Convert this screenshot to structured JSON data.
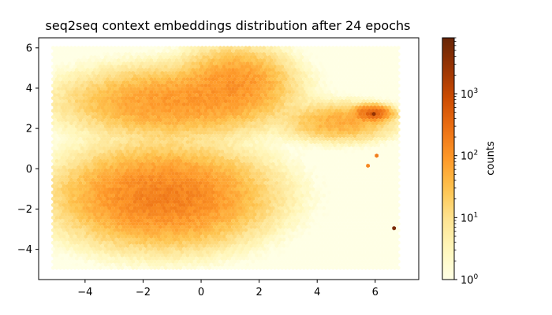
{
  "chart_data": {
    "type": "heatmap",
    "subtype": "hexbin",
    "title": "seq2seq context embeddings distribution after 24 epochs",
    "xlabel": "",
    "ylabel": "",
    "xlim": [
      -5.6,
      7.5
    ],
    "ylim": [
      -5.5,
      6.5
    ],
    "x_ticks": [
      -4,
      -2,
      0,
      2,
      4,
      6
    ],
    "y_ticks": [
      -4,
      -2,
      0,
      2,
      4,
      6
    ],
    "data_extent": {
      "x": [
        -5.1,
        6.8
      ],
      "y": [
        -5.0,
        6.0
      ]
    },
    "colormap": "YlOrBr",
    "colormap_stops": [
      "#ffffe5",
      "#fff7bc",
      "#fee391",
      "#fec44f",
      "#fe9929",
      "#ec7014",
      "#cc4c02",
      "#993404",
      "#662506"
    ],
    "colorbar": {
      "label": "counts",
      "scale": "log",
      "range": [
        1,
        8000
      ],
      "ticks": [
        {
          "value": 1,
          "base": "10",
          "exp": "0"
        },
        {
          "value": 10,
          "base": "10",
          "exp": "1"
        },
        {
          "value": 100,
          "base": "10",
          "exp": "2"
        },
        {
          "value": 1000,
          "base": "10",
          "exp": "3"
        }
      ]
    },
    "clusters": [
      {
        "center": [
          -1.3,
          -1.4
        ],
        "spread": [
          1.6,
          1.1
        ],
        "peak_count": 180
      },
      {
        "center": [
          -1.0,
          3.3
        ],
        "spread": [
          1.7,
          0.8
        ],
        "peak_count": 90
      },
      {
        "center": [
          1.2,
          4.3
        ],
        "spread": [
          0.9,
          0.8
        ],
        "peak_count": 90
      },
      {
        "center": [
          4.8,
          2.3
        ],
        "spread": [
          0.9,
          0.45
        ],
        "peak_count": 55
      },
      {
        "center": [
          5.9,
          2.75
        ],
        "spread": [
          0.3,
          0.18
        ],
        "peak_count": 400
      }
    ],
    "hotspots": [
      {
        "x": 5.95,
        "y": 2.72,
        "count": 3000
      },
      {
        "x": 6.65,
        "y": -2.95,
        "count": 5000
      },
      {
        "x": 6.05,
        "y": 0.65,
        "count": 200
      },
      {
        "x": 5.75,
        "y": 0.15,
        "count": 150
      }
    ]
  }
}
